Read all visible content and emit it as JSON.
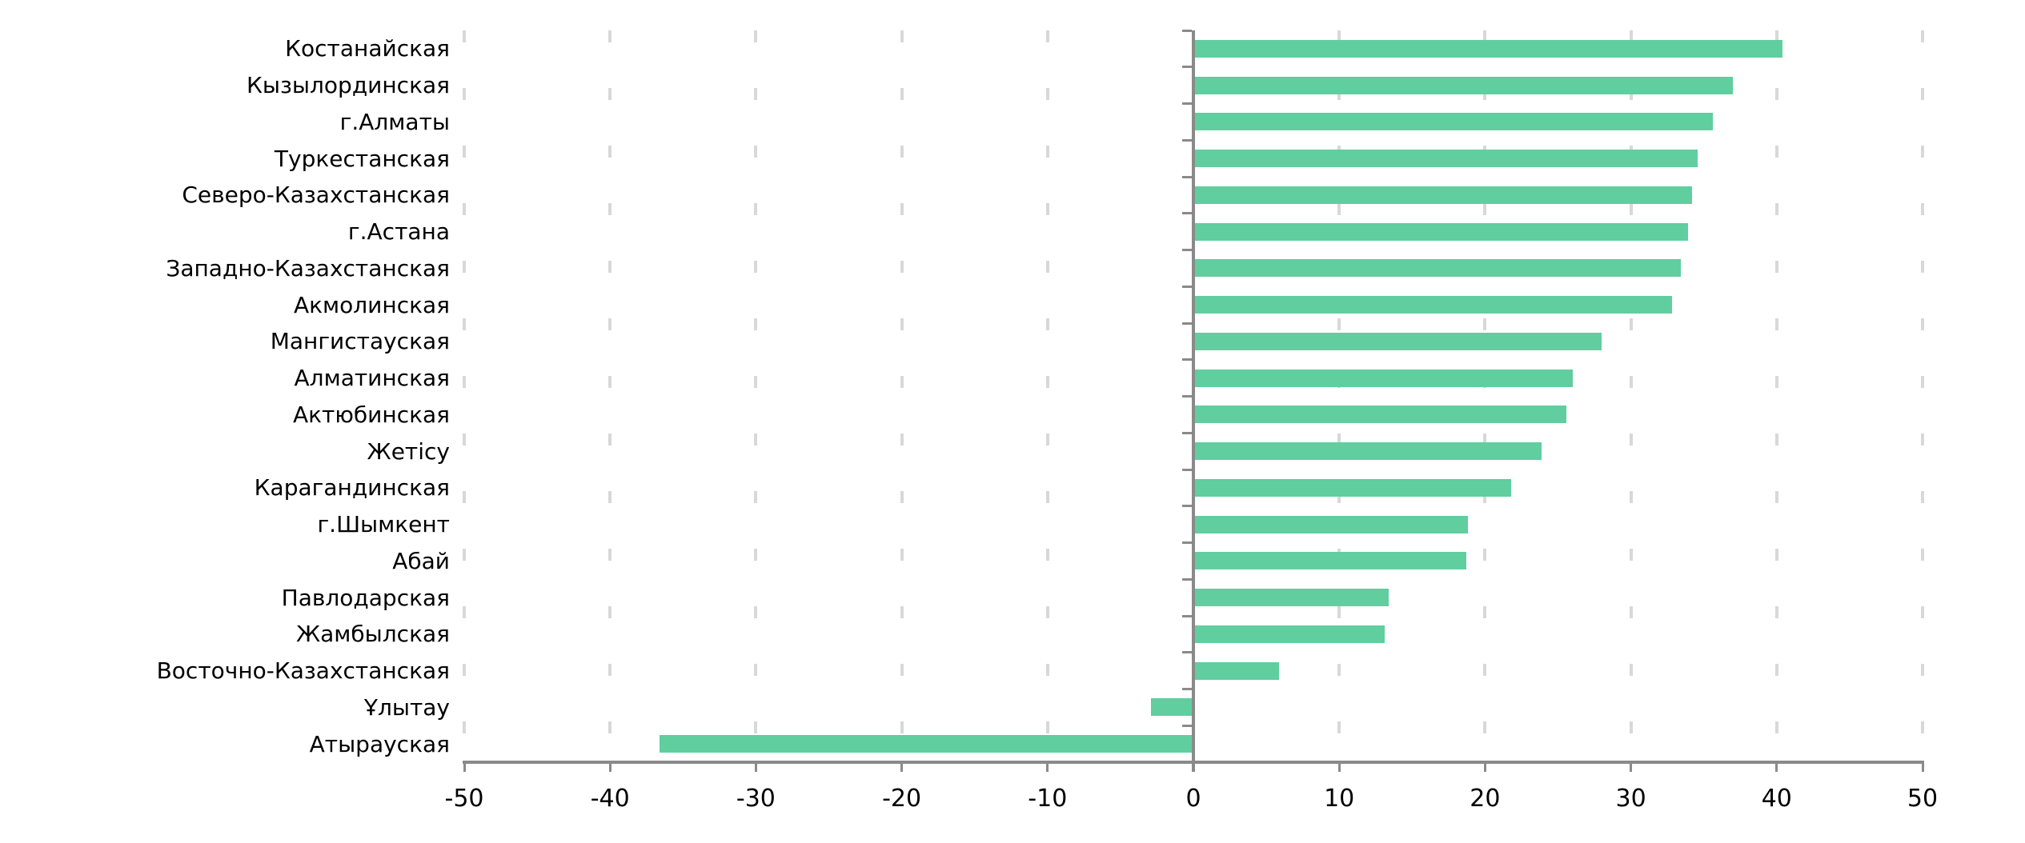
{
  "chart_data": {
    "type": "bar",
    "orientation": "horizontal",
    "title": "",
    "xlabel": "",
    "ylabel": "",
    "xlim": [
      -50,
      50
    ],
    "x_ticks": [
      -50,
      -40,
      -30,
      -20,
      -10,
      0,
      10,
      20,
      30,
      40,
      50
    ],
    "grid": "vertical-dashed",
    "legend": "none",
    "categories": [
      "Костанайская",
      "Кызылординская",
      "г.Алматы",
      "Туркестанская",
      "Северо-Казахстанская",
      "г.Астана",
      "Западно-Казахстанская",
      "Акмолинская",
      "Мангистауская",
      "Алматинская",
      "Актюбинская",
      "Жетісу",
      "Карагандинская",
      "г.Шымкент",
      "Абай",
      "Павлодарская",
      "Жамбылская",
      "Восточно-Казахстанская",
      "Ұлытау",
      "Атырауская"
    ],
    "values": [
      40.4,
      37.0,
      35.6,
      34.6,
      34.2,
      33.9,
      33.4,
      32.8,
      28.0,
      26.0,
      25.6,
      23.9,
      21.8,
      18.8,
      18.7,
      13.4,
      13.1,
      5.9,
      -2.9,
      -36.6
    ],
    "colors": {
      "bar": "#60ce9f",
      "axis": "#8a8a8a",
      "gridline": "#d8d8d8",
      "text": "#000000"
    }
  }
}
